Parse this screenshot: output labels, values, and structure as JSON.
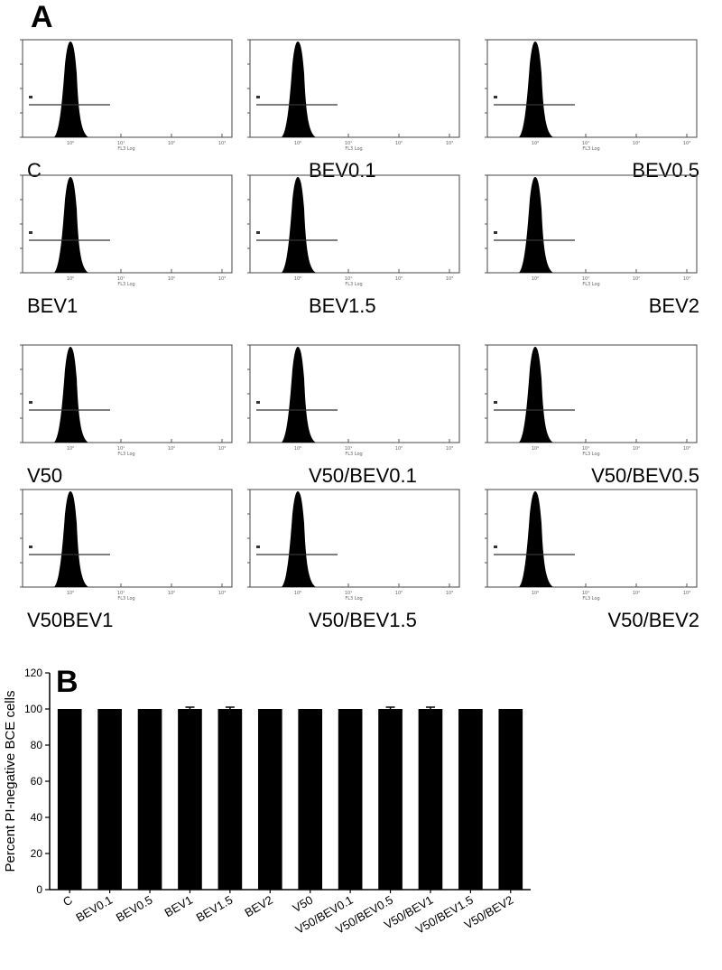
{
  "panels": {
    "a": "A",
    "b": "B"
  },
  "histograms": [
    {
      "label": "C"
    },
    {
      "label": "BEV0.1"
    },
    {
      "label": "BEV0.5"
    },
    {
      "label": "BEV1"
    },
    {
      "label": "BEV1.5"
    },
    {
      "label": "BEV2"
    },
    {
      "label": "V50"
    },
    {
      "label": "V50/BEV0.1"
    },
    {
      "label": "V50/BEV0.5"
    },
    {
      "label": "V50BEV1"
    },
    {
      "label": "V50/BEV1.5"
    },
    {
      "label": "V50/BEV2"
    }
  ],
  "histogram_axis": {
    "xlabel": "FL3 Log",
    "ticks": [
      "10⁰",
      "10¹",
      "10²",
      "10³"
    ]
  },
  "chart_data": {
    "type": "bar",
    "categories": [
      "C",
      "BEV0.1",
      "BEV0.5",
      "BEV1",
      "BEV1.5",
      "BEV2",
      "V50",
      "V50/BEV0.1",
      "V50/BEV0.5",
      "V50/BEV1",
      "V50/BEV1.5",
      "V50/BEV2"
    ],
    "values": [
      100,
      100,
      100,
      100,
      100,
      100,
      100,
      100,
      100,
      100,
      100,
      100
    ],
    "errors": [
      0,
      0,
      0,
      1,
      1,
      0,
      0,
      0,
      1,
      1,
      0,
      0
    ],
    "ylabel": "Percent PI-negative BCE cells",
    "ylim": [
      0,
      120
    ],
    "yticks": [
      0,
      20,
      40,
      60,
      80,
      100,
      120
    ],
    "bar_color": "#000000",
    "grid": false
  }
}
